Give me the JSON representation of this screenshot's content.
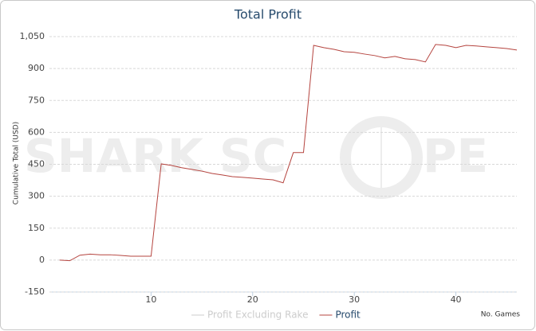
{
  "chart_data": {
    "type": "line",
    "title": "Total Profit",
    "x_label": "No. Games",
    "y_label": "Cumulative Total (USD)",
    "watermark": [
      "SHARK SC",
      "PE"
    ],
    "x": [
      1,
      2,
      3,
      4,
      5,
      6,
      7,
      8,
      9,
      10,
      11,
      12,
      13,
      14,
      15,
      16,
      17,
      18,
      19,
      20,
      21,
      22,
      23,
      24,
      25,
      26,
      27,
      28,
      29,
      30,
      31,
      32,
      33,
      34,
      35,
      36,
      37,
      38,
      39,
      40,
      41,
      42,
      43,
      44,
      45,
      46
    ],
    "series": [
      {
        "name": "Profit",
        "color": "#b5443f",
        "values": [
          0,
          -3,
          23,
          28,
          25,
          25,
          22,
          18,
          18,
          18,
          452,
          445,
          434,
          426,
          418,
          407,
          400,
          392,
          389,
          385,
          381,
          377,
          363,
          505,
          505,
          1009,
          998,
          990,
          979,
          976,
          968,
          961,
          950,
          957,
          946,
          942,
          931,
          1013,
          1009,
          998,
          1009,
          1006,
          1002,
          998,
          994,
          987
        ]
      }
    ],
    "hidden_series": [
      {
        "name": "Profit Excluding Rake",
        "color": "#cccccc"
      }
    ],
    "xlim": [
      0,
      46
    ],
    "xticks": [
      10,
      20,
      30,
      40
    ],
    "ylim": [
      -150,
      1050
    ],
    "yticks": [
      -150,
      0,
      150,
      300,
      450,
      600,
      750,
      900,
      {
        "value": 1050,
        "label": "1,050"
      }
    ],
    "grid": true
  }
}
